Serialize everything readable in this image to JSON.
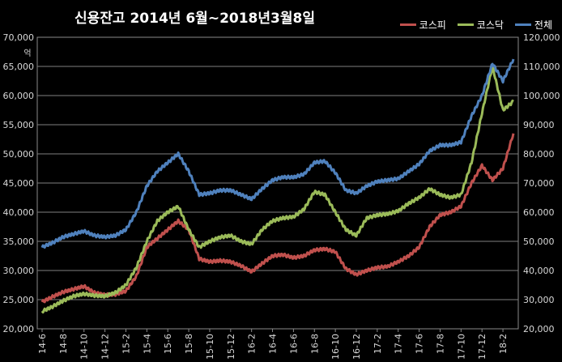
{
  "chart_data": {
    "type": "line",
    "title": "신용잔고 2014년 6월~2018년3월8일",
    "y_unit": "억",
    "ylim_left": [
      20000,
      70000
    ],
    "ylim_right": [
      20000,
      120000
    ],
    "y_ticks_left": [
      "20,000",
      "25,000",
      "30,000",
      "35,000",
      "40,000",
      "45,000",
      "50,000",
      "55,000",
      "60,000",
      "65,000",
      "70,000"
    ],
    "y_ticks_right": [
      "20,000",
      "30,000",
      "40,000",
      "50,000",
      "60,000",
      "70,000",
      "80,000",
      "90,000",
      "100,000",
      "110,000",
      "120,000"
    ],
    "x_labels": [
      "14-6",
      "14-8",
      "14-10",
      "14-12",
      "15-2",
      "15-4",
      "15-6",
      "15-8",
      "15-10",
      "15-12",
      "16-2",
      "16-4",
      "16-6",
      "16-8",
      "16-10",
      "16-12",
      "17-2",
      "17-4",
      "17-6",
      "17-8",
      "17-10",
      "17-12",
      "18-2"
    ],
    "grid": true,
    "legend_position": "top-right",
    "series": [
      {
        "name": "코스피",
        "axis": "left",
        "color": "#c0504d",
        "x": [
          "14-6",
          "14-7",
          "14-8",
          "14-9",
          "14-10",
          "14-11",
          "14-12",
          "15-1",
          "15-2",
          "15-3",
          "15-4",
          "15-5",
          "15-6",
          "15-7",
          "15-8",
          "15-9",
          "15-10",
          "15-11",
          "15-12",
          "16-1",
          "16-2",
          "16-3",
          "16-4",
          "16-5",
          "16-6",
          "16-7",
          "16-8",
          "16-9",
          "16-10",
          "16-11",
          "16-12",
          "17-1",
          "17-2",
          "17-3",
          "17-4",
          "17-5",
          "17-6",
          "17-7",
          "17-8",
          "17-9",
          "17-10",
          "17-11",
          "17-12",
          "18-1",
          "18-2",
          "18-3"
        ],
        "values": [
          24600,
          25500,
          26300,
          26800,
          27300,
          26200,
          25800,
          25900,
          26500,
          29000,
          34000,
          35500,
          37000,
          38500,
          37000,
          32000,
          31500,
          31700,
          31500,
          30800,
          29800,
          31200,
          32500,
          32700,
          32200,
          32500,
          33500,
          33700,
          33200,
          30300,
          29300,
          30000,
          30500,
          30700,
          31500,
          32500,
          34000,
          37500,
          39500,
          40000,
          41000,
          45000,
          48000,
          45500,
          47500,
          53500
        ]
      },
      {
        "name": "코스닥",
        "axis": "left",
        "color": "#9bbb59",
        "x": [
          "14-6",
          "14-7",
          "14-8",
          "14-9",
          "14-10",
          "14-11",
          "14-12",
          "15-1",
          "15-2",
          "15-3",
          "15-4",
          "15-5",
          "15-6",
          "15-7",
          "15-8",
          "15-9",
          "15-10",
          "15-11",
          "15-12",
          "16-1",
          "16-2",
          "16-3",
          "16-4",
          "16-5",
          "16-6",
          "16-7",
          "16-8",
          "16-9",
          "16-10",
          "16-11",
          "16-12",
          "17-1",
          "17-2",
          "17-3",
          "17-4",
          "17-5",
          "17-6",
          "17-7",
          "17-8",
          "17-9",
          "17-10",
          "17-11",
          "17-12",
          "18-1",
          "18-2",
          "18-3"
        ],
        "values": [
          23000,
          23800,
          24800,
          25600,
          26000,
          25700,
          25600,
          26200,
          27500,
          30500,
          35000,
          38500,
          40000,
          41000,
          37000,
          34000,
          35000,
          35700,
          36000,
          35000,
          34500,
          37000,
          38500,
          39000,
          39200,
          40500,
          43500,
          43000,
          40000,
          37000,
          36000,
          39000,
          39500,
          39700,
          40200,
          41500,
          42500,
          44000,
          43000,
          42500,
          43000,
          48500,
          57000,
          65000,
          57500,
          59000
        ]
      },
      {
        "name": "전체",
        "axis": "right",
        "color": "#4f81bd",
        "x": [
          "14-6",
          "14-7",
          "14-8",
          "14-9",
          "14-10",
          "14-11",
          "14-12",
          "15-1",
          "15-2",
          "15-3",
          "15-4",
          "15-5",
          "15-6",
          "15-7",
          "15-8",
          "15-9",
          "15-10",
          "15-11",
          "15-12",
          "16-1",
          "16-2",
          "16-3",
          "16-4",
          "16-5",
          "16-6",
          "16-7",
          "16-8",
          "16-9",
          "16-10",
          "16-11",
          "16-12",
          "17-1",
          "17-2",
          "17-3",
          "17-4",
          "17-5",
          "17-6",
          "17-7",
          "17-8",
          "17-9",
          "17-10",
          "17-11",
          "17-12",
          "18-1",
          "18-2",
          "18-3"
        ],
        "values": [
          48000,
          49500,
          51500,
          52500,
          53500,
          52000,
          51500,
          52000,
          54000,
          60000,
          69000,
          74000,
          77000,
          80000,
          74000,
          66000,
          66500,
          67500,
          67500,
          66000,
          64500,
          68000,
          71000,
          72000,
          72000,
          73000,
          77000,
          77500,
          73500,
          67500,
          66500,
          69000,
          70500,
          71000,
          71500,
          74000,
          76500,
          81000,
          83000,
          83000,
          84000,
          93000,
          100000,
          111000,
          105000,
          112500
        ]
      }
    ]
  }
}
